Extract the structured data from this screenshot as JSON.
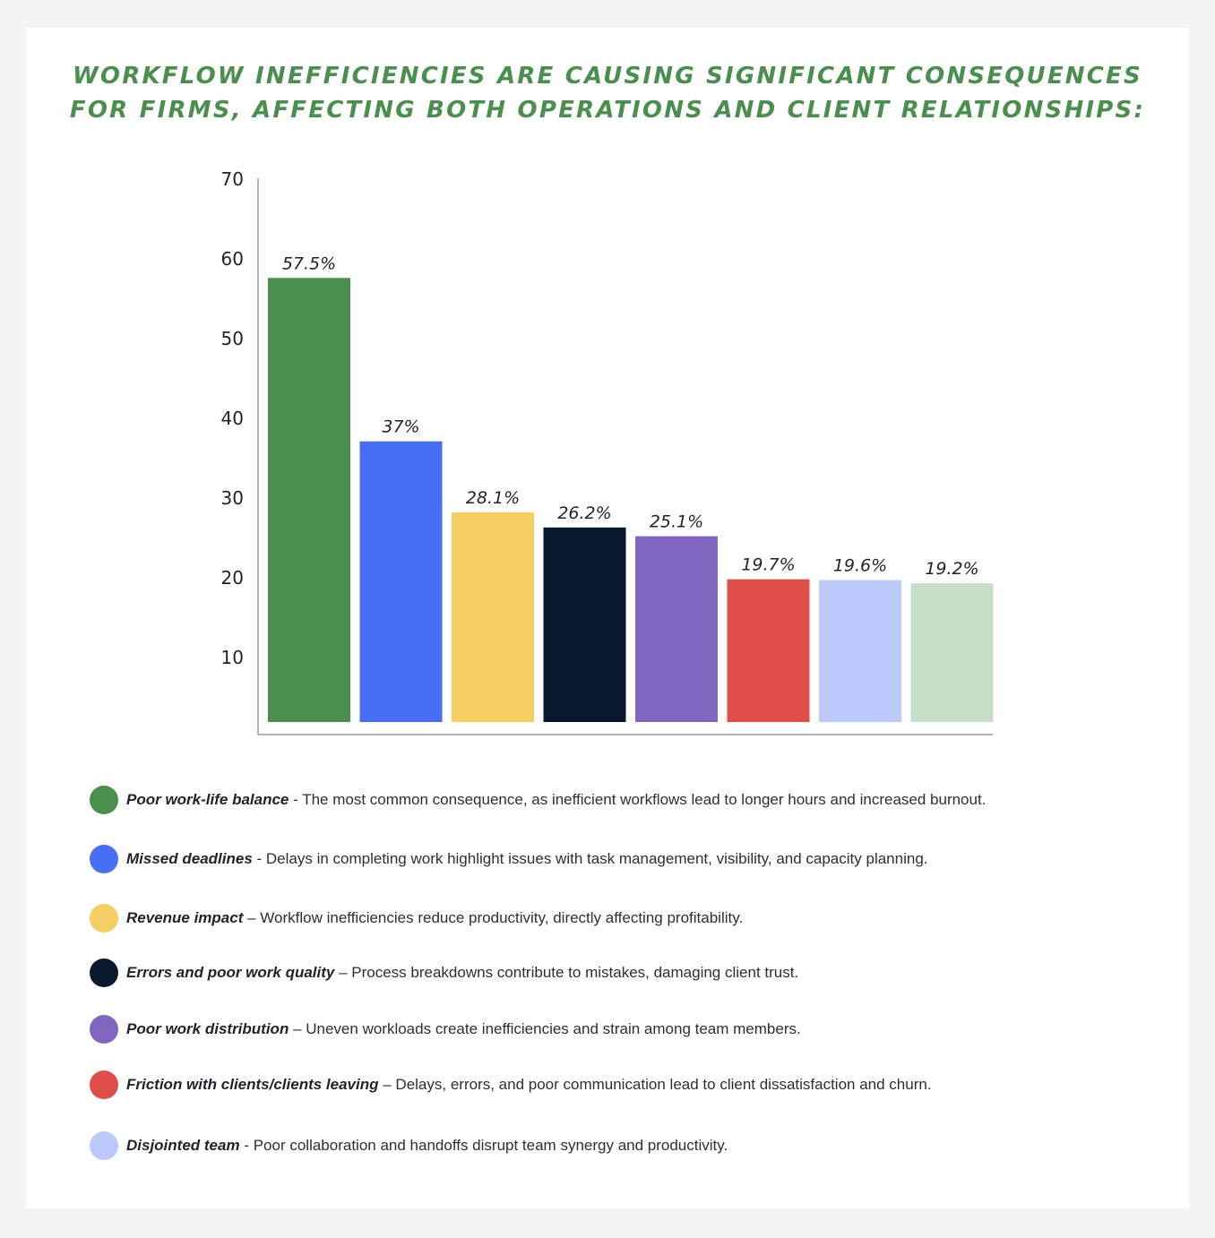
{
  "title": {
    "line1": "WORKFLOW INEFFICIENCIES ARE CAUSING SIGNIFICANT CONSEQUENCES",
    "line2": "FOR FIRMS, AFFECTING BOTH OPERATIONS AND CLIENT RELATIONSHIPS:"
  },
  "colors": {
    "title": "#4a8f4e",
    "background": "#f3f4f8",
    "card": "#ffffff"
  },
  "chart_data": {
    "type": "bar",
    "categories": [
      "Poor work-life balance",
      "Missed deadlines",
      "Revenue impact",
      "Errors and poor work quality",
      "Poor work distribution",
      "Friction with clients/clients leaving",
      "Disjointed team",
      ""
    ],
    "values": [
      57.5,
      37,
      28.1,
      26.2,
      25.1,
      19.7,
      19.6,
      19.2
    ],
    "labels": [
      "57.5%",
      "37%",
      "28.1%",
      "26.2%",
      "25.1%",
      "19.7%",
      "19.6%",
      "19.2%"
    ],
    "bar_colors": [
      "#4b8f4e",
      "#476ff5",
      "#f6cf62",
      "#0a182d",
      "#8066c0",
      "#df4f47",
      "#bccafb",
      "#c6dfc8"
    ],
    "yticks": [
      10,
      20,
      30,
      40,
      50,
      60,
      70
    ],
    "ylim": [
      2,
      70
    ],
    "title": "",
    "xlabel": "",
    "ylabel": ""
  },
  "legend": [
    {
      "color": "#4b8f4e",
      "bold": "Poor work-life balance",
      "text": " - The most common consequence, as inefficient workflows lead to longer hours and increased burnout."
    },
    {
      "color": "#476ff5",
      "bold": "Missed deadlines",
      "text": " - Delays in completing work highlight issues with task management, visibility, and capacity planning."
    },
    {
      "color": "#f6cf62",
      "bold": "Revenue impact",
      "text": " – Workflow inefficiencies reduce productivity, directly affecting profitability."
    },
    {
      "color": "#0a182d",
      "bold": "Errors and poor work quality",
      "text": "  – Process breakdowns contribute to mistakes, damaging client trust."
    },
    {
      "color": "#8066c0",
      "bold": "Poor work distribution",
      "text": " – Uneven workloads create inefficiencies and strain among team members."
    },
    {
      "color": "#df4f47",
      "bold": "Friction with clients/clients leaving",
      "text": "  – Delays, errors, and poor communication lead to client dissatisfaction and churn."
    },
    {
      "color": "#bccafb",
      "bold": "Disjointed team",
      "text": " - Poor collaboration and handoffs disrupt team synergy and productivity."
    }
  ]
}
